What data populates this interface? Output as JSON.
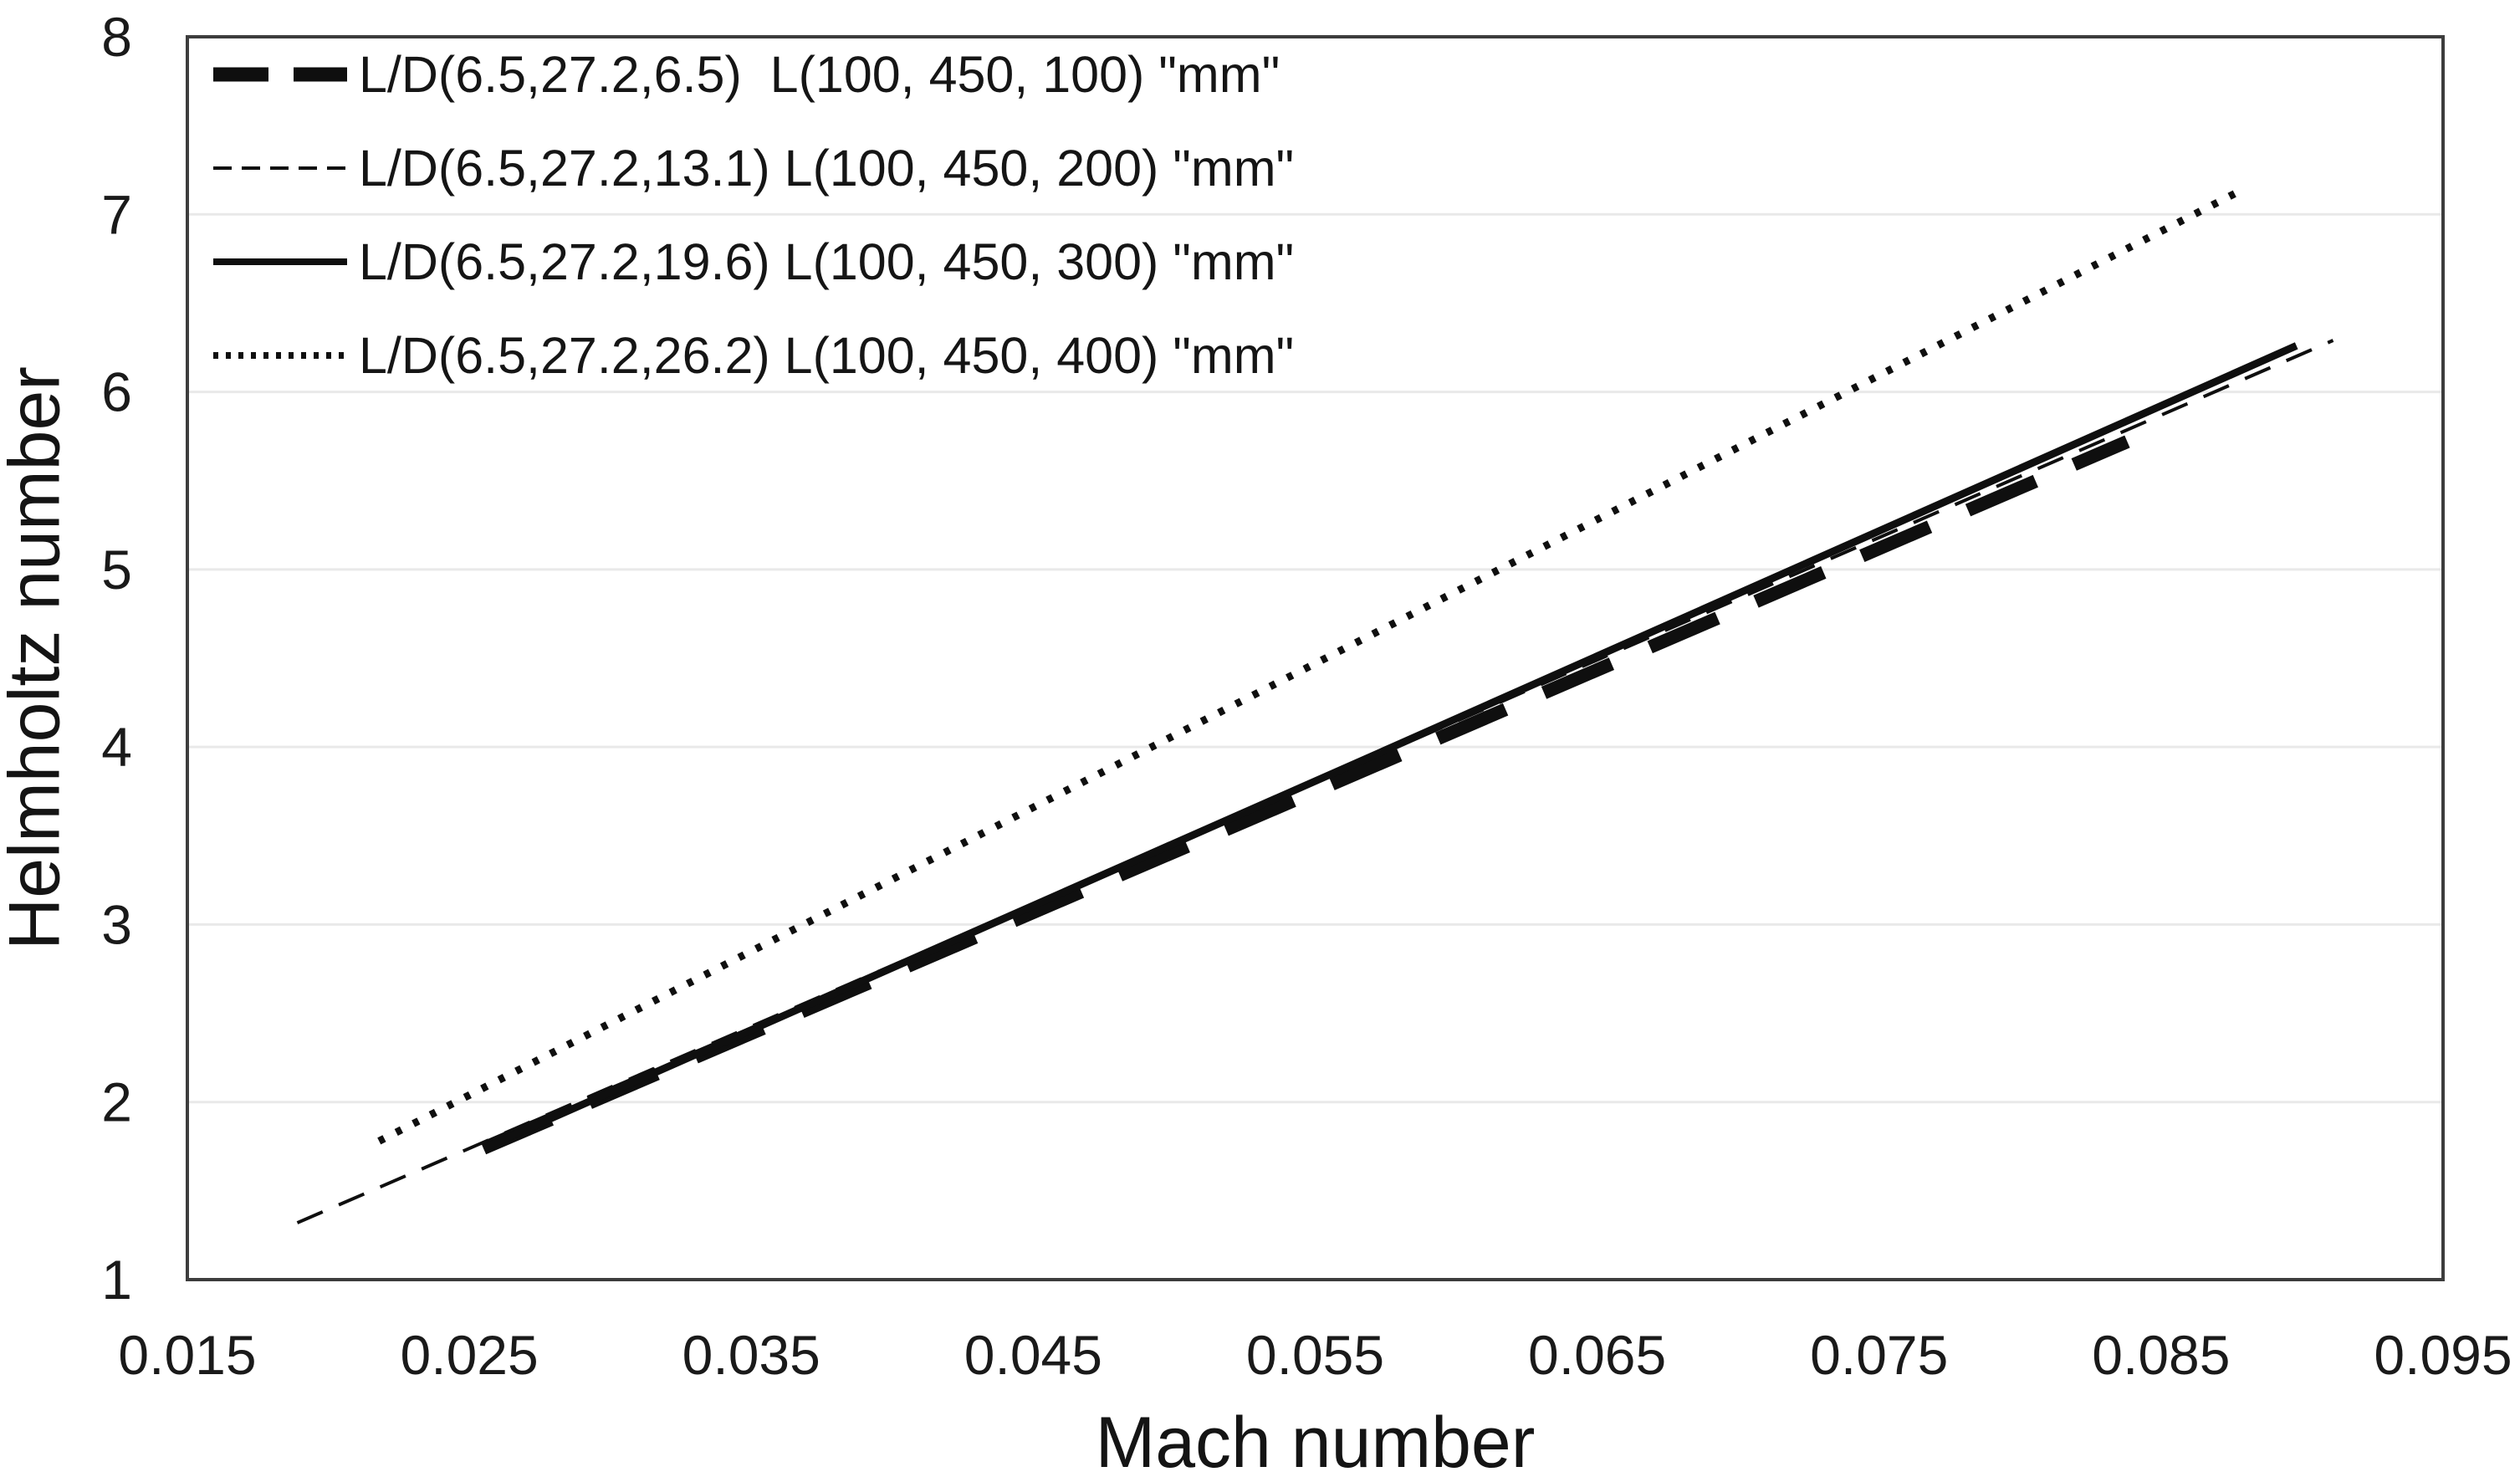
{
  "chart_data": {
    "type": "line",
    "title": "",
    "xlabel": "Mach number",
    "ylabel": "Helmholtz number",
    "xlim": [
      0.015,
      0.095
    ],
    "ylim": [
      1,
      8
    ],
    "grid": "horizontal-only",
    "legend_position": "top-left-inside-plot",
    "colors": {
      "line": "#0f0f0f",
      "grid": "#e9e9e9",
      "frame": "#3d3d3d",
      "text": "#1a1a1a",
      "background": "#ffffff"
    },
    "x_ticks": [
      {
        "value": 0.015,
        "label": "0.015"
      },
      {
        "value": 0.025,
        "label": "0.025"
      },
      {
        "value": 0.035,
        "label": "0.035"
      },
      {
        "value": 0.045,
        "label": "0.045"
      },
      {
        "value": 0.055,
        "label": "0.055"
      },
      {
        "value": 0.065,
        "label": "0.065"
      },
      {
        "value": 0.075,
        "label": "0.075"
      },
      {
        "value": 0.085,
        "label": "0.085"
      },
      {
        "value": 0.095,
        "label": "0.095"
      }
    ],
    "y_ticks": [
      {
        "value": 1,
        "label": "1"
      },
      {
        "value": 2,
        "label": "2"
      },
      {
        "value": 3,
        "label": "3"
      },
      {
        "value": 4,
        "label": "4"
      },
      {
        "value": 5,
        "label": "5"
      },
      {
        "value": 6,
        "label": "6"
      },
      {
        "value": 7,
        "label": "7"
      },
      {
        "value": 8,
        "label": "8"
      }
    ],
    "gridlines_y": [
      2,
      3,
      4,
      5,
      6,
      7
    ],
    "series": [
      {
        "label": "L/D(6.5,27.2,6.5)  L(100, 450, 100) \"mm\"",
        "line_style": "dashed-thick",
        "points": [
          [
            0.0255,
            1.74
          ],
          [
            0.055,
            3.75
          ],
          [
            0.0838,
            5.72
          ]
        ]
      },
      {
        "label": "L/D(6.5,27.2,13.1) L(100, 450, 200) \"mm\"",
        "line_style": "dashed-thin",
        "points": [
          [
            0.0189,
            1.32
          ],
          [
            0.055,
            3.8
          ],
          [
            0.0911,
            6.29
          ]
        ]
      },
      {
        "label": "L/D(6.5,27.2,19.6) L(100, 450, 300) \"mm\"",
        "line_style": "solid",
        "points": [
          [
            0.0255,
            1.74
          ],
          [
            0.0576,
            3.99
          ],
          [
            0.0898,
            6.26
          ]
        ]
      },
      {
        "label": "L/D(6.5,27.2,26.2) L(100, 450, 400) \"mm\"",
        "line_style": "dotted",
        "points": [
          [
            0.0218,
            1.78
          ],
          [
            0.055,
            4.47
          ],
          [
            0.0879,
            7.14
          ]
        ]
      }
    ]
  }
}
